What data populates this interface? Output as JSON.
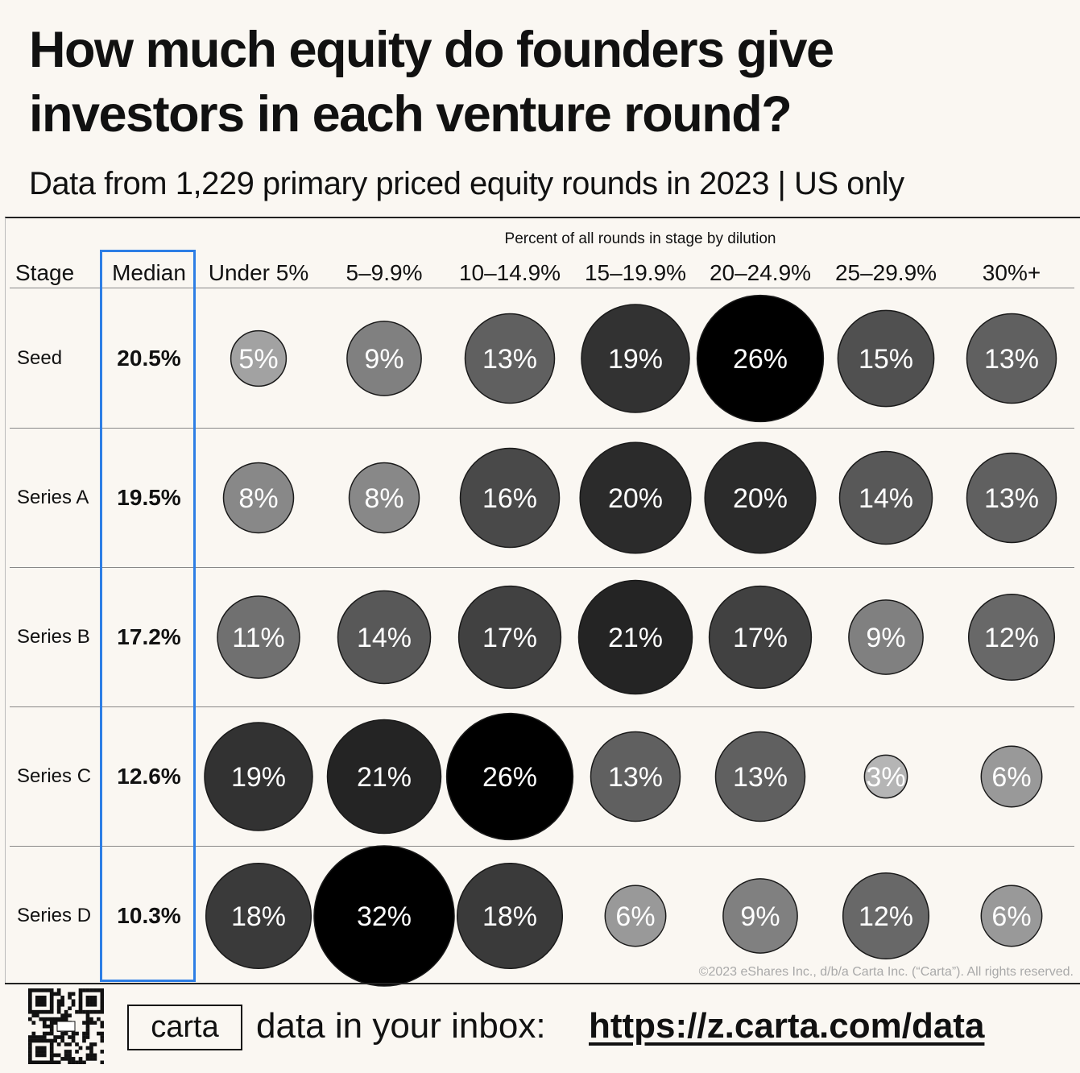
{
  "title": "How much equity do founders give investors in each venture round?",
  "subtitle": "Data from 1,229 primary priced equity rounds in 2023 | US only",
  "copyright": "©2023 eShares Inc., d/b/a Carta Inc. (“Carta”). All rights reserved.",
  "footer": {
    "logo_text": "carta",
    "cta": "data in your inbox:",
    "link": "https://z.carta.com/data"
  },
  "colors": {
    "median_highlight": "#2d7ee5",
    "background": "#faf7f2"
  },
  "chart_data": {
    "type": "bubble-table",
    "supertitle": "Percent of all rounds in stage by dilution",
    "stage_header": "Stage",
    "median_header": "Median",
    "categories": [
      "Under 5%",
      "5–9.9%",
      "10–14.9%",
      "15–19.9%",
      "20–24.9%",
      "25–29.9%",
      "30%+"
    ],
    "rows": [
      {
        "stage": "Seed",
        "median": "20.5%",
        "values": [
          5,
          9,
          13,
          19,
          26,
          15,
          13
        ]
      },
      {
        "stage": "Series A",
        "median": "19.5%",
        "values": [
          8,
          8,
          16,
          20,
          20,
          14,
          13
        ]
      },
      {
        "stage": "Series B",
        "median": "17.2%",
        "values": [
          11,
          14,
          17,
          21,
          17,
          9,
          12
        ]
      },
      {
        "stage": "Series C",
        "median": "12.6%",
        "values": [
          19,
          21,
          26,
          13,
          13,
          3,
          6
        ]
      },
      {
        "stage": "Series D",
        "median": "10.3%",
        "values": [
          18,
          32,
          18,
          6,
          9,
          12,
          6
        ]
      }
    ]
  }
}
